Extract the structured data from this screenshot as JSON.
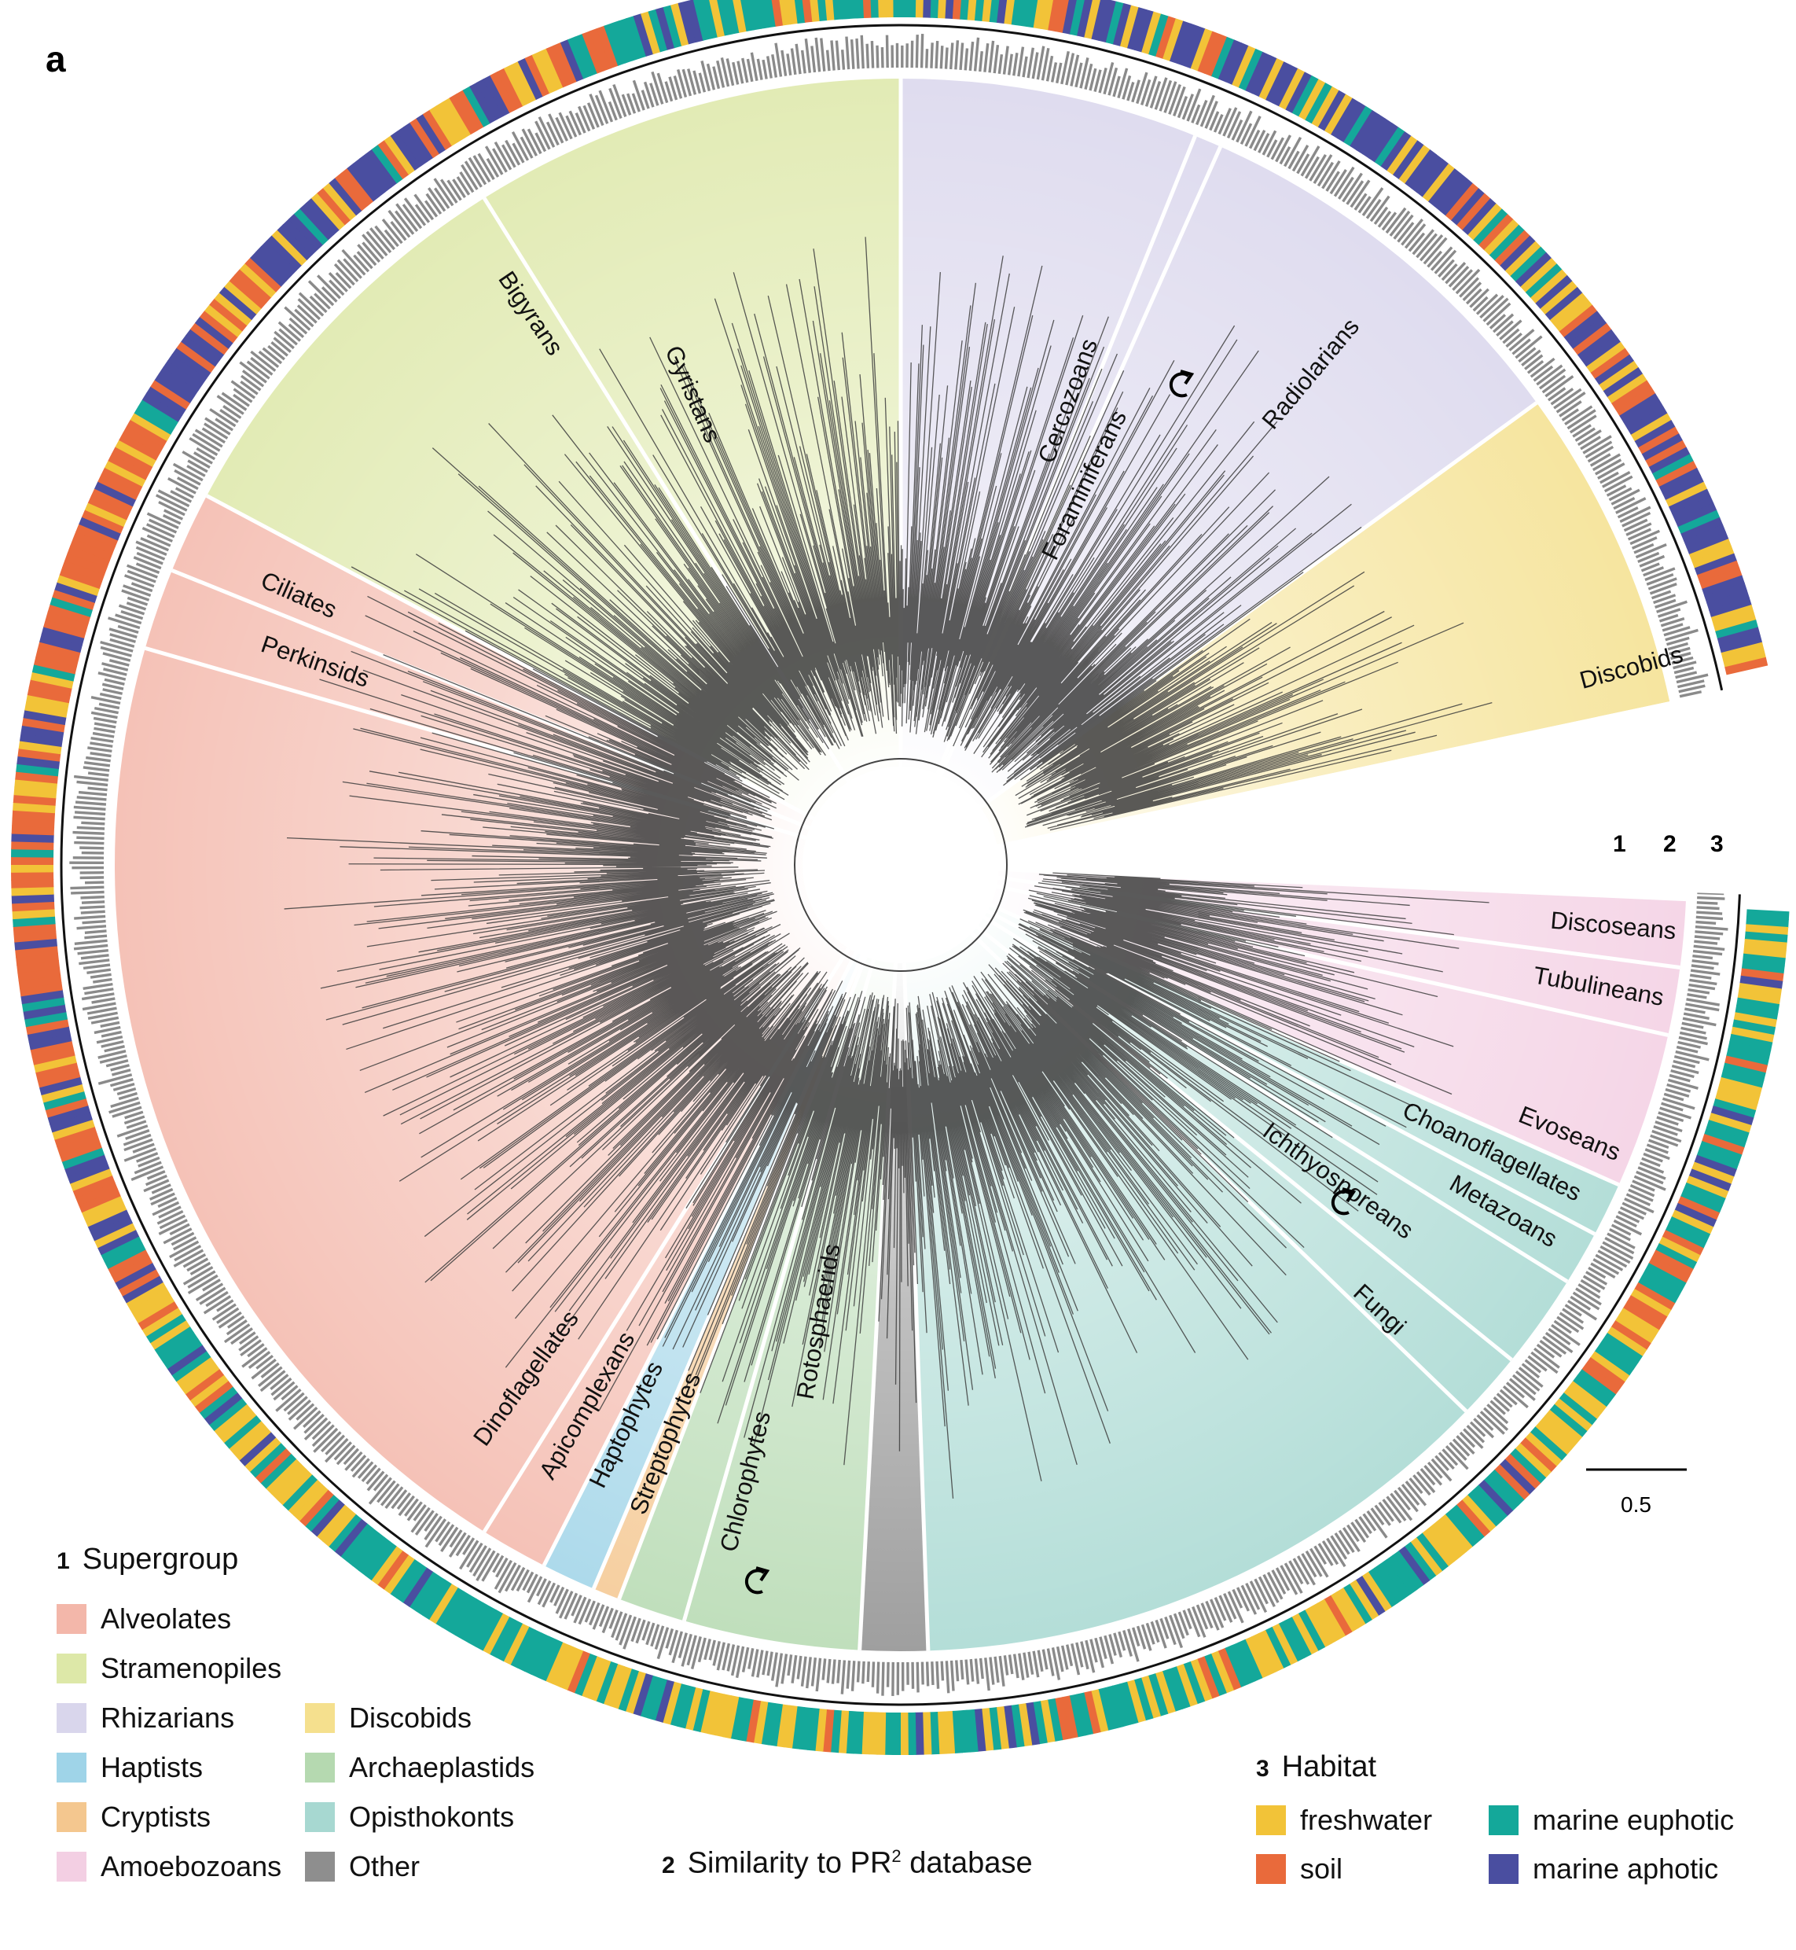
{
  "panel_letter": "a",
  "clades": [
    {
      "label": "Gyristans",
      "supergroup": "Stramenopiles"
    },
    {
      "label": "Bigyrans",
      "supergroup": "Stramenopiles"
    },
    {
      "label": "Cercozoans",
      "supergroup": "Rhizarians"
    },
    {
      "label": "Foraminiferans",
      "supergroup": "Rhizarians"
    },
    {
      "label": "Radiolarians",
      "supergroup": "Rhizarians"
    },
    {
      "label": "Discobids",
      "supergroup": "Discobids"
    },
    {
      "label": "Ciliates",
      "supergroup": "Alveolates"
    },
    {
      "label": "Perkinsids",
      "supergroup": "Alveolates"
    },
    {
      "label": "Dinoflagellates",
      "supergroup": "Alveolates"
    },
    {
      "label": "Apicomplexans",
      "supergroup": "Alveolates"
    },
    {
      "label": "Haptophytes",
      "supergroup": "Haptists"
    },
    {
      "label": "Streptophytes",
      "supergroup": "Archaeplastids"
    },
    {
      "label": "Chlorophytes",
      "supergroup": "Archaeplastids"
    },
    {
      "label": "Rotosphaerids",
      "supergroup": "Other"
    },
    {
      "label": "Discoseans",
      "supergroup": "Amoebozoans"
    },
    {
      "label": "Tubulineans",
      "supergroup": "Amoebozoans"
    },
    {
      "label": "Evoseans",
      "supergroup": "Amoebozoans"
    },
    {
      "label": "Choanoflagellates",
      "supergroup": "Opisthokonts"
    },
    {
      "label": "Metazoans",
      "supergroup": "Opisthokonts"
    },
    {
      "label": "Ichthyosporeans",
      "supergroup": "Opisthokonts"
    },
    {
      "label": "Fungi",
      "supergroup": "Opisthokonts"
    }
  ],
  "rings": [
    "1",
    "2",
    "3"
  ],
  "scale_bar": {
    "value": "0.5"
  },
  "legend_supergroup": {
    "number": "1",
    "title": "Supergroup",
    "items": [
      {
        "label": "Alveolates",
        "color": "#f3b7aa"
      },
      {
        "label": "Stramenopiles",
        "color": "#dde8a8"
      },
      {
        "label": "Rhizarians",
        "color": "#d9d6ec"
      },
      {
        "label": "Haptists",
        "color": "#9fd4e8"
      },
      {
        "label": "Cryptists",
        "color": "#f4c78f"
      },
      {
        "label": "Amoebozoans",
        "color": "#f3cfe3"
      },
      {
        "label": "Discobids",
        "color": "#f5e08e"
      },
      {
        "label": "Archaeplastids",
        "color": "#b5d9b0"
      },
      {
        "label": "Opisthokonts",
        "color": "#a7d8d1"
      },
      {
        "label": "Other",
        "color": "#8e8e8e"
      }
    ]
  },
  "legend_similarity": {
    "number": "2",
    "title_pre": "Similarity to PR",
    "title_sup": "2",
    "title_post": " database"
  },
  "legend_habitat": {
    "number": "3",
    "title": "Habitat",
    "items": [
      {
        "label": "freshwater",
        "color": "#f2c338"
      },
      {
        "label": "marine euphotic",
        "color": "#14a89a"
      },
      {
        "label": "soil",
        "color": "#e96a3b"
      },
      {
        "label": "marine aphotic",
        "color": "#4a4ea0"
      }
    ]
  }
}
